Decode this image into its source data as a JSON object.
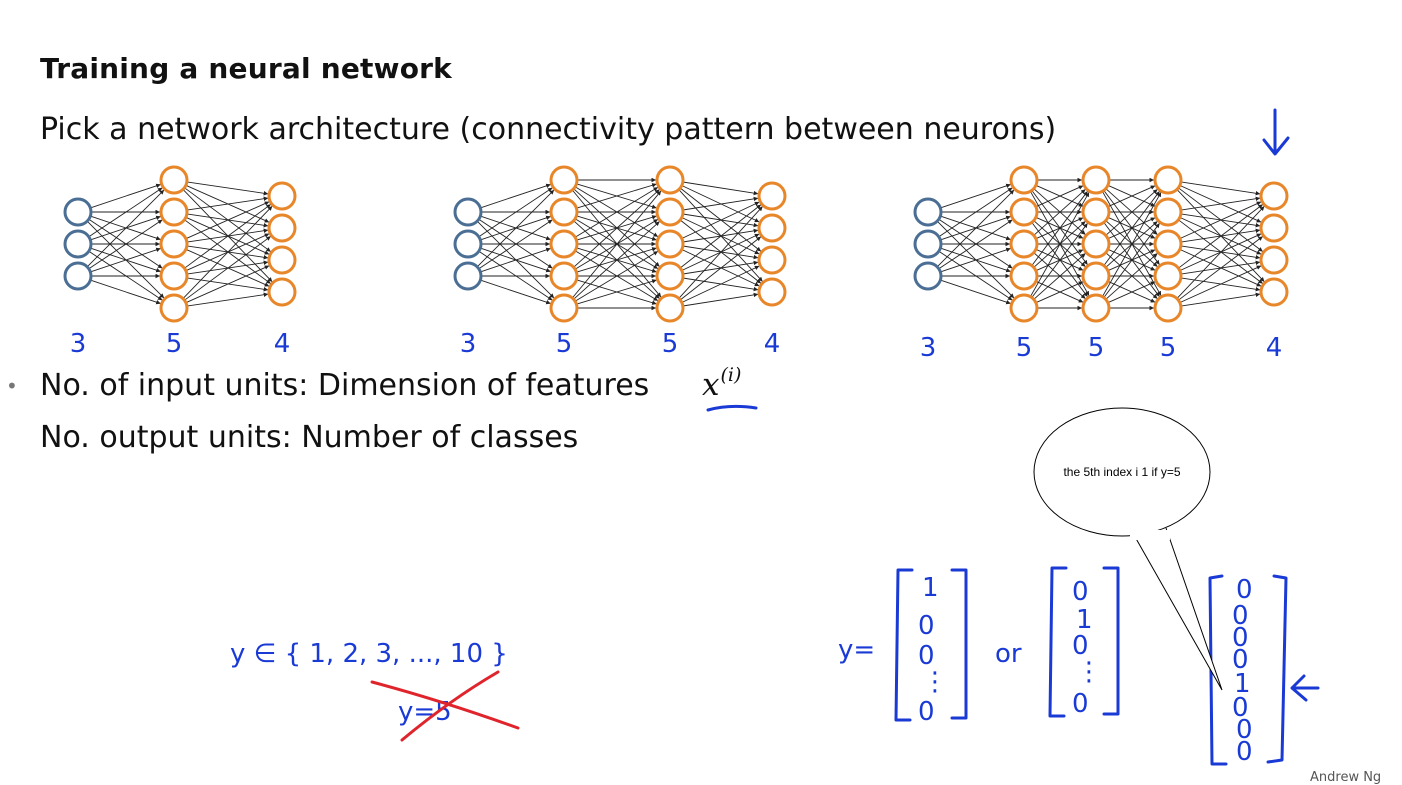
{
  "slide": {
    "title": "Training a neural network",
    "subtitle": "Pick a network architecture (connectivity pattern between neurons)",
    "line_input": "No. of input units: Dimension of features ",
    "math_var": "x",
    "math_sup": "(i)",
    "line_output": "No. output units: Number of classes",
    "footer": "Andrew Ng"
  },
  "networks": [
    {
      "layers": [
        3,
        5,
        4
      ],
      "labels": [
        "3",
        "5",
        "4"
      ]
    },
    {
      "layers": [
        3,
        5,
        5,
        4
      ],
      "labels": [
        "3",
        "5",
        "5",
        "4"
      ]
    },
    {
      "layers": [
        3,
        5,
        5,
        5,
        4
      ],
      "labels": [
        "3",
        "5",
        "5",
        "5",
        "4"
      ]
    }
  ],
  "handwriting": {
    "y_set": "y ∈ { 1, 2, 3, ..., 10 }",
    "crossed": "y=5",
    "y_eq": "y=",
    "or": "or",
    "vec1": [
      "1",
      "0",
      "0",
      "⋮",
      "0"
    ],
    "vec2": [
      "0",
      "1",
      "0",
      "⋮",
      "0"
    ],
    "vec3": [
      "0",
      "0",
      "0",
      "0",
      "1",
      "0",
      "0",
      "0"
    ]
  },
  "callout": {
    "text": "the 5th index i 1 if y=5"
  },
  "colors": {
    "input_node": "#4a6e94",
    "hidden_node": "#e8862a",
    "ink": "#1a3ad6",
    "cross": "#e0242c"
  }
}
